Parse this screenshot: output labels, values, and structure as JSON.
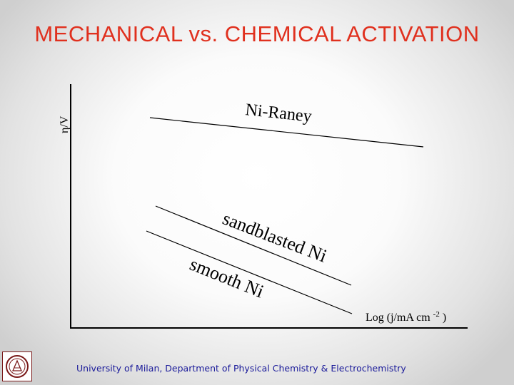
{
  "slide": {
    "title": "MECHANICAL vs. CHEMICAL ACTIVATION",
    "footer": "University of Milan, Department of Physical Chemistry & Electrochemistry",
    "title_color": "#e0301e",
    "footer_color": "#1a1a9a"
  },
  "diagram": {
    "y_axis_label": "η/V",
    "x_axis_label_prefix": "Log (j/mA cm",
    "x_axis_label_sup": "-2",
    "x_axis_label_suffix": ")",
    "lines": [
      {
        "name": "Ni-Raney",
        "label": "Ni-Raney"
      },
      {
        "name": "sandblasted-ni",
        "label": "sandblasted Ni"
      },
      {
        "name": "smooth-ni",
        "label": "smooth Ni"
      }
    ]
  },
  "logo": {
    "icon": "university-seal-icon"
  }
}
